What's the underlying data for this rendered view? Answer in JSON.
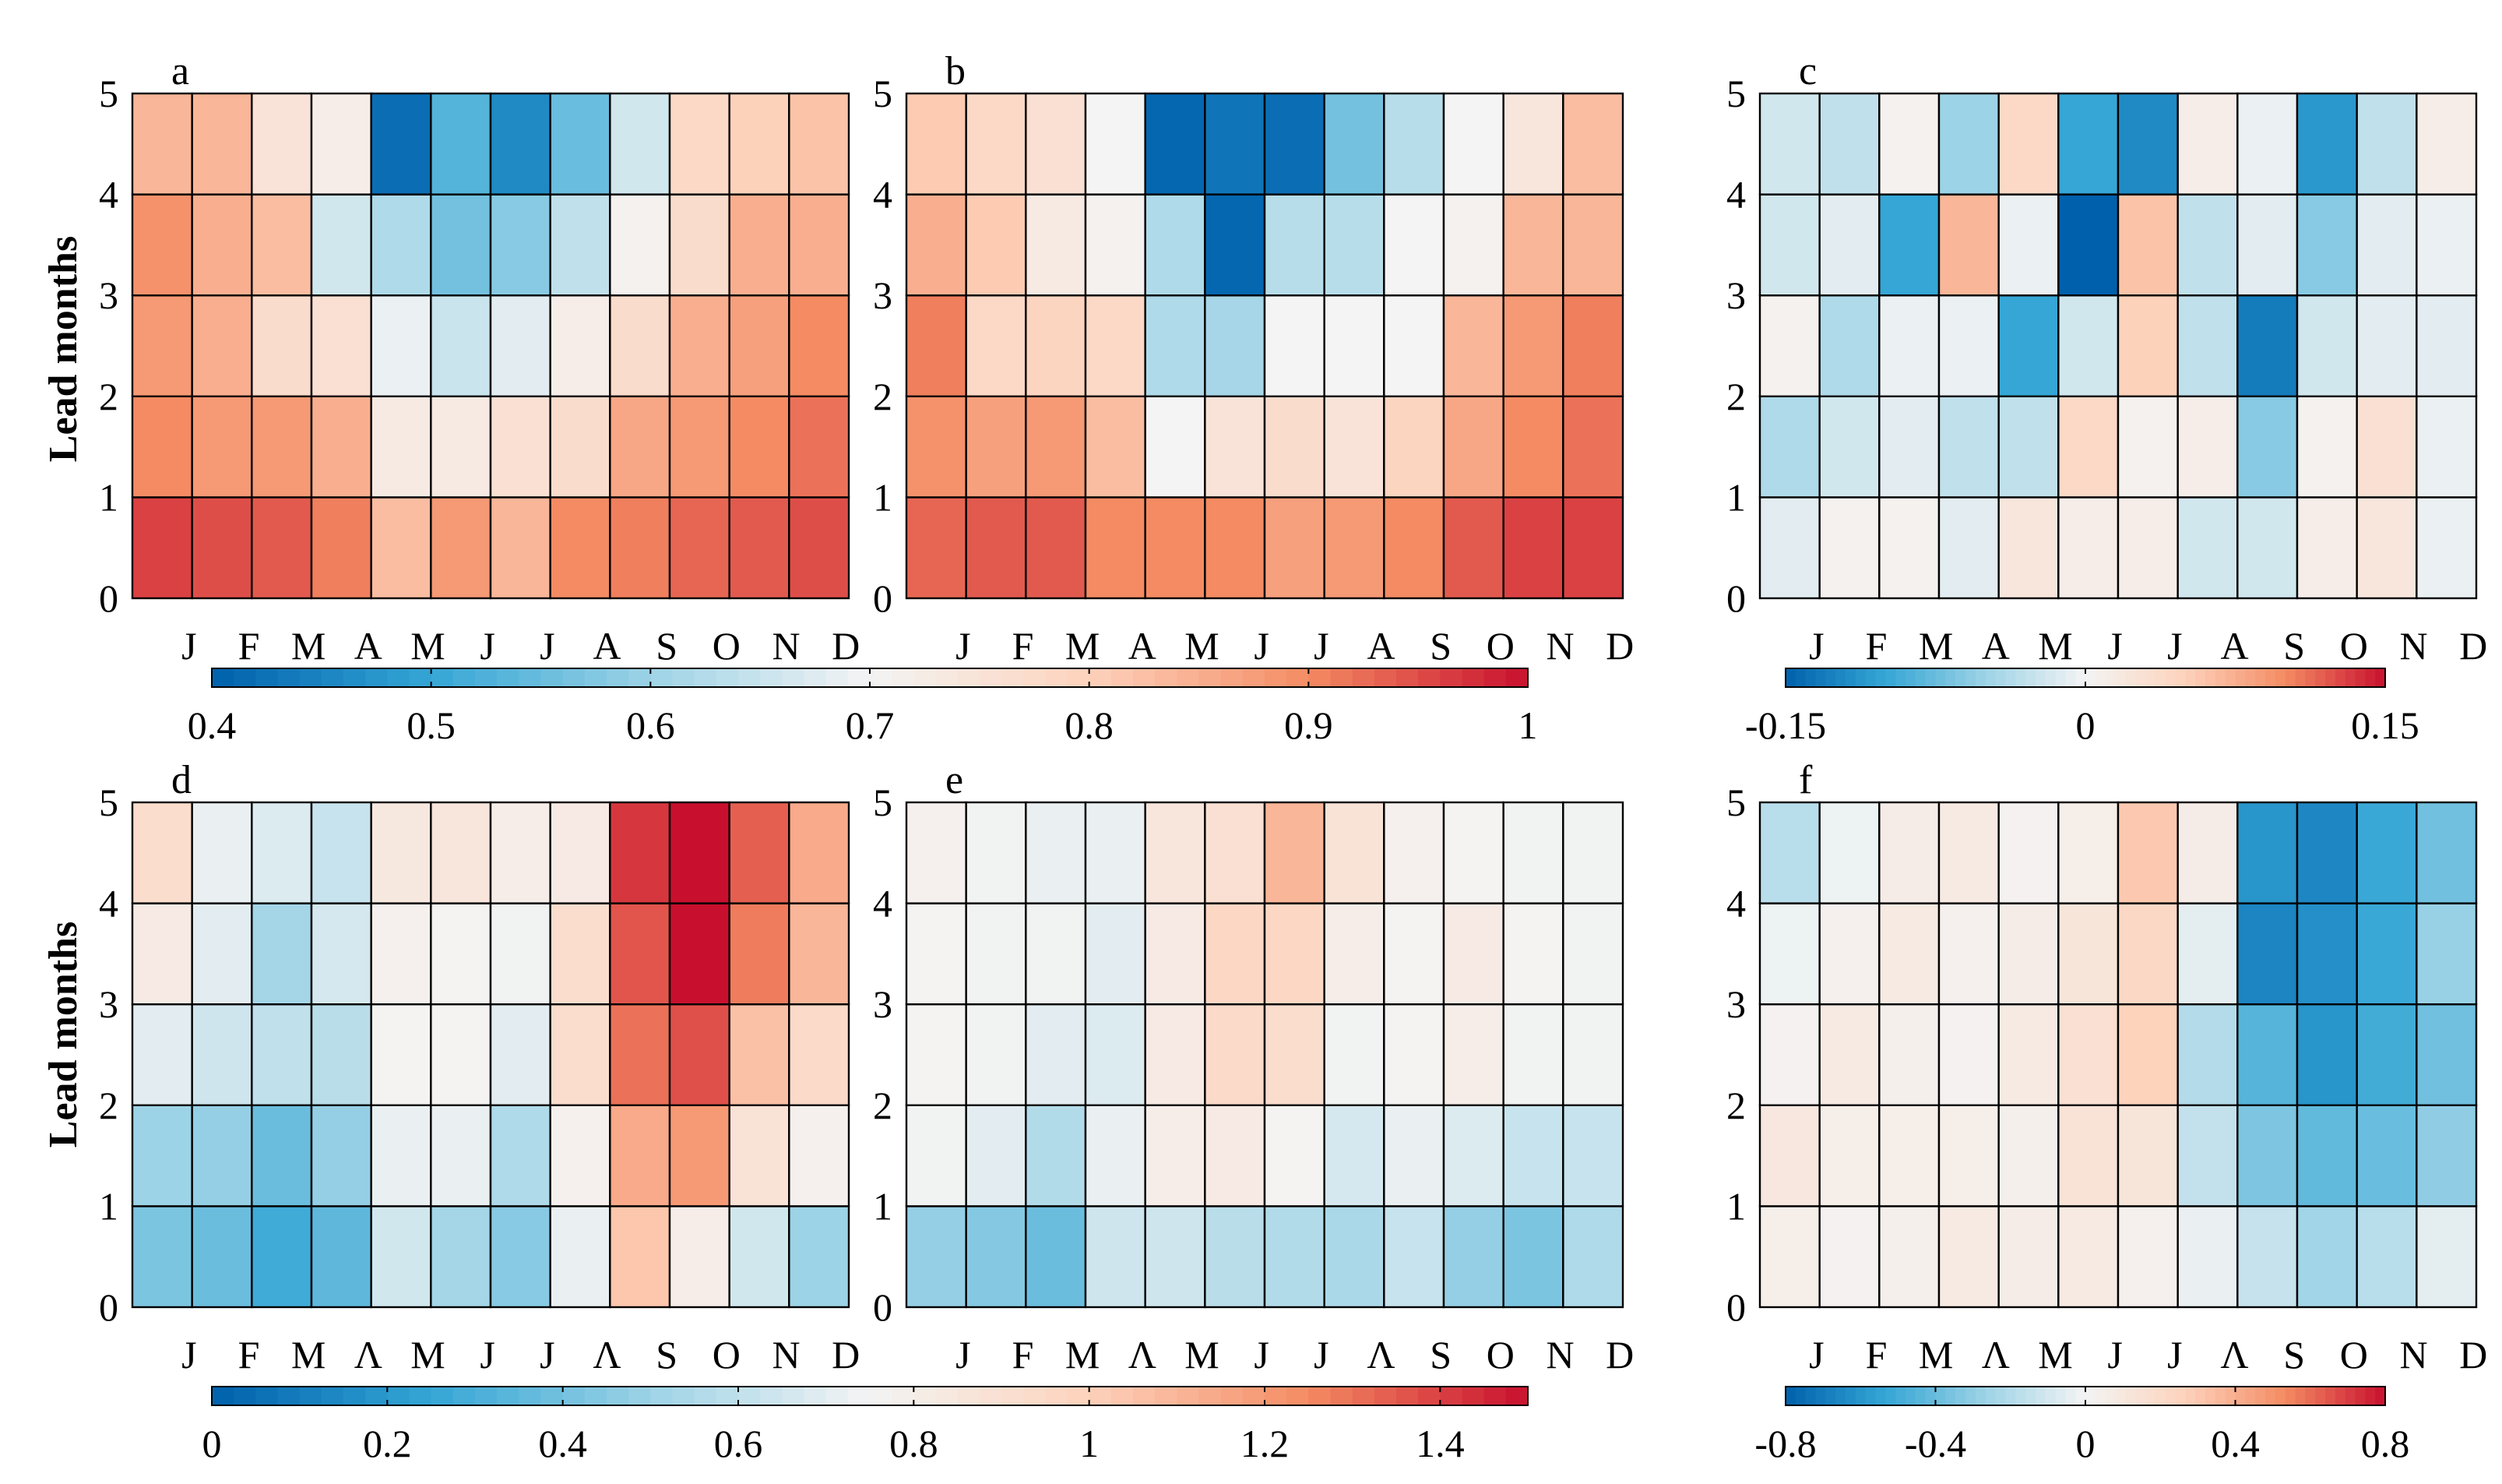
{
  "figure": {
    "ylabel": "Lead months",
    "months": [
      "J",
      "F",
      "M",
      "A",
      "M",
      "J",
      "J",
      "A",
      "S",
      "O",
      "N",
      "D"
    ],
    "months_alt": [
      "J",
      "F",
      "M",
      "Λ",
      "M",
      "J",
      "J",
      "Λ",
      "S",
      "O",
      "N",
      "D"
    ],
    "lead_ticks": [
      "0",
      "1",
      "2",
      "3",
      "4",
      "5"
    ]
  },
  "chart_data": [
    {
      "type": "heatmap",
      "label": "a",
      "x_label_set": "months",
      "ylabel": "Lead months",
      "colorbar": "cb1",
      "vmin": 0.4,
      "vmax": 1.0,
      "rows": [
        [
          0.96,
          0.95,
          0.94,
          0.91,
          0.83,
          0.88,
          0.84,
          0.9,
          0.91,
          0.93,
          0.94,
          0.95
        ],
        [
          0.9,
          0.88,
          0.88,
          0.85,
          0.73,
          0.73,
          0.76,
          0.77,
          0.86,
          0.88,
          0.9,
          0.92
        ],
        [
          0.88,
          0.85,
          0.77,
          0.76,
          0.69,
          0.65,
          0.68,
          0.72,
          0.77,
          0.85,
          0.87,
          0.9
        ],
        [
          0.89,
          0.85,
          0.83,
          0.66,
          0.62,
          0.56,
          0.58,
          0.64,
          0.71,
          0.77,
          0.85,
          0.85
        ],
        [
          0.84,
          0.84,
          0.75,
          0.72,
          0.42,
          0.53,
          0.46,
          0.55,
          0.66,
          0.78,
          0.8,
          0.82
        ]
      ]
    },
    {
      "type": "heatmap",
      "label": "b",
      "x_label_set": "months",
      "colorbar": "cb1",
      "vmin": 0.4,
      "vmax": 1.0,
      "rows": [
        [
          0.93,
          0.94,
          0.94,
          0.9,
          0.9,
          0.9,
          0.87,
          0.88,
          0.9,
          0.94,
          0.96,
          0.96
        ],
        [
          0.89,
          0.87,
          0.88,
          0.83,
          0.7,
          0.75,
          0.77,
          0.75,
          0.79,
          0.86,
          0.9,
          0.92
        ],
        [
          0.91,
          0.78,
          0.79,
          0.78,
          0.62,
          0.61,
          0.7,
          0.7,
          0.7,
          0.84,
          0.88,
          0.91
        ],
        [
          0.85,
          0.81,
          0.73,
          0.71,
          0.62,
          0.41,
          0.63,
          0.63,
          0.7,
          0.71,
          0.84,
          0.84
        ],
        [
          0.81,
          0.78,
          0.76,
          0.7,
          0.41,
          0.43,
          0.42,
          0.56,
          0.63,
          0.7,
          0.74,
          0.83
        ]
      ]
    },
    {
      "type": "heatmap",
      "label": "c",
      "x_label_set": "months",
      "colorbar": "cb2",
      "vmin": -0.15,
      "vmax": 0.15,
      "rows": [
        [
          -0.01,
          0.005,
          0.005,
          -0.01,
          0.02,
          0.01,
          0.01,
          -0.02,
          -0.02,
          0.01,
          0.02,
          -0.005
        ],
        [
          -0.04,
          -0.02,
          -0.01,
          -0.03,
          -0.03,
          0.04,
          0.005,
          0.01,
          -0.06,
          0.005,
          0.03,
          -0.005
        ],
        [
          0.005,
          -0.04,
          -0.005,
          -0.005,
          -0.1,
          -0.02,
          0.05,
          -0.03,
          -0.13,
          -0.02,
          -0.01,
          -0.01
        ],
        [
          -0.02,
          -0.01,
          -0.1,
          0.07,
          -0.005,
          -0.15,
          0.06,
          -0.03,
          -0.01,
          -0.06,
          -0.01,
          -0.005
        ],
        [
          -0.02,
          -0.03,
          0.005,
          -0.05,
          0.04,
          -0.1,
          -0.12,
          0.01,
          -0.005,
          -0.11,
          -0.03,
          0.01
        ]
      ]
    },
    {
      "type": "heatmap",
      "label": "d",
      "x_label_set": "months_alt",
      "ylabel": "Lead months",
      "colorbar": "cb3",
      "vmin": 0,
      "vmax": 1.5,
      "rows": [
        [
          0.42,
          0.38,
          0.28,
          0.35,
          0.65,
          0.52,
          0.45,
          0.72,
          1.04,
          0.8,
          0.65,
          0.5
        ],
        [
          0.5,
          0.48,
          0.38,
          0.48,
          0.72,
          0.72,
          0.55,
          0.78,
          1.14,
          1.2,
          0.88,
          0.78
        ],
        [
          0.7,
          0.64,
          0.6,
          0.58,
          0.76,
          0.76,
          0.7,
          0.92,
          1.3,
          1.37,
          1.06,
          0.94
        ],
        [
          0.82,
          0.7,
          0.52,
          0.66,
          0.78,
          0.76,
          0.74,
          0.92,
          1.36,
          1.5,
          1.28,
          1.1
        ],
        [
          0.92,
          0.72,
          0.68,
          0.62,
          0.84,
          0.86,
          0.8,
          0.82,
          1.42,
          1.5,
          1.34,
          1.14
        ]
      ]
    },
    {
      "type": "heatmap",
      "label": "e",
      "x_label_set": "months_alt",
      "colorbar": "cb3",
      "vmin": 0,
      "vmax": 1.5,
      "rows": [
        [
          0.48,
          0.44,
          0.38,
          0.64,
          0.64,
          0.58,
          0.56,
          0.54,
          0.62,
          0.48,
          0.42,
          0.55
        ],
        [
          0.74,
          0.7,
          0.56,
          0.72,
          0.8,
          0.82,
          0.76,
          0.66,
          0.72,
          0.68,
          0.62,
          0.62
        ],
        [
          0.76,
          0.74,
          0.7,
          0.68,
          0.82,
          0.94,
          0.92,
          0.74,
          0.76,
          0.8,
          0.74,
          0.74
        ],
        [
          0.76,
          0.74,
          0.74,
          0.7,
          0.82,
          0.96,
          0.96,
          0.8,
          0.76,
          0.82,
          0.76,
          0.74
        ],
        [
          0.78,
          0.74,
          0.72,
          0.72,
          0.86,
          0.9,
          1.1,
          0.88,
          0.78,
          0.76,
          0.74,
          0.74
        ]
      ]
    },
    {
      "type": "heatmap",
      "label": "f",
      "x_label_set": "months_alt",
      "colorbar": "cb4",
      "vmin": -0.8,
      "vmax": 0.8,
      "rows": [
        [
          0.05,
          0.02,
          0.04,
          0.08,
          0.06,
          0.08,
          0.03,
          -0.03,
          -0.14,
          -0.25,
          -0.18,
          -0.05
        ],
        [
          0.1,
          0.05,
          0.05,
          0.05,
          0.04,
          0.14,
          0.12,
          -0.15,
          -0.35,
          -0.42,
          -0.4,
          -0.3
        ],
        [
          0.02,
          0.08,
          0.04,
          0.02,
          0.08,
          0.16,
          0.26,
          -0.2,
          -0.45,
          -0.6,
          -0.5,
          -0.38
        ],
        [
          -0.02,
          0.03,
          0.08,
          0.03,
          0.06,
          0.12,
          0.22,
          -0.05,
          -0.66,
          -0.62,
          -0.52,
          -0.28
        ],
        [
          -0.18,
          -0.02,
          0.06,
          0.08,
          0.02,
          0.05,
          0.3,
          0.06,
          -0.6,
          -0.65,
          -0.52,
          -0.38
        ]
      ]
    }
  ],
  "colorbars": [
    {
      "id": "cb1",
      "vmin": 0.4,
      "vmax": 1.0,
      "ticks": [
        0.4,
        0.5,
        0.6,
        0.7,
        0.8,
        0.9,
        1.0
      ],
      "tick_labels": [
        "0.4",
        "0.5",
        "0.6",
        "0.7",
        "0.8",
        "0.9",
        "1"
      ]
    },
    {
      "id": "cb2",
      "vmin": -0.15,
      "vmax": 0.15,
      "ticks": [
        -0.15,
        0,
        0.15
      ],
      "tick_labels": [
        "-0.15",
        "0",
        "0.15"
      ]
    },
    {
      "id": "cb3",
      "vmin": 0,
      "vmax": 1.5,
      "ticks": [
        0,
        0.2,
        0.4,
        0.6,
        0.8,
        1.0,
        1.2,
        1.4
      ],
      "tick_labels": [
        "0",
        "0.2",
        "0.4",
        "0.6",
        "0.8",
        "1",
        "1.2",
        "1.4"
      ]
    },
    {
      "id": "cb4",
      "vmin": -0.8,
      "vmax": 0.8,
      "ticks": [
        -0.8,
        -0.4,
        0,
        0.4,
        0.8
      ],
      "tick_labels": [
        "-0.8",
        "-0.4",
        "0",
        "0.4",
        "0.8"
      ]
    }
  ],
  "colormap": {
    "name": "blue-white-red",
    "stops": [
      "#0060ac",
      "#35a6d5",
      "#9dd3e6",
      "#f4f4f4",
      "#fdd2bb",
      "#f48b63",
      "#c8102e"
    ]
  }
}
